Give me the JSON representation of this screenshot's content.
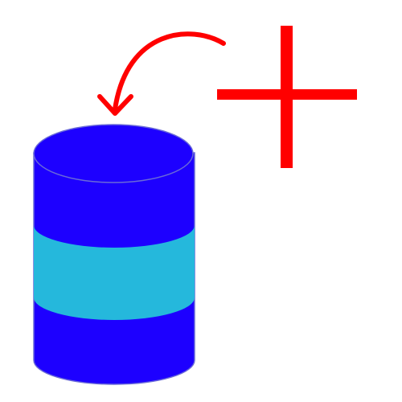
{
  "icon": {
    "name": "add-to-database-icon",
    "parts": {
      "database": "database-icon",
      "arrow": "curved-arrow-icon",
      "plus": "plus-icon"
    }
  },
  "colors": {
    "background": "#ffffff",
    "database_body": "#1d00ff",
    "database_band": "#25b8dc",
    "database_outline": "#6a6ad8",
    "accent": "#ff0000"
  }
}
